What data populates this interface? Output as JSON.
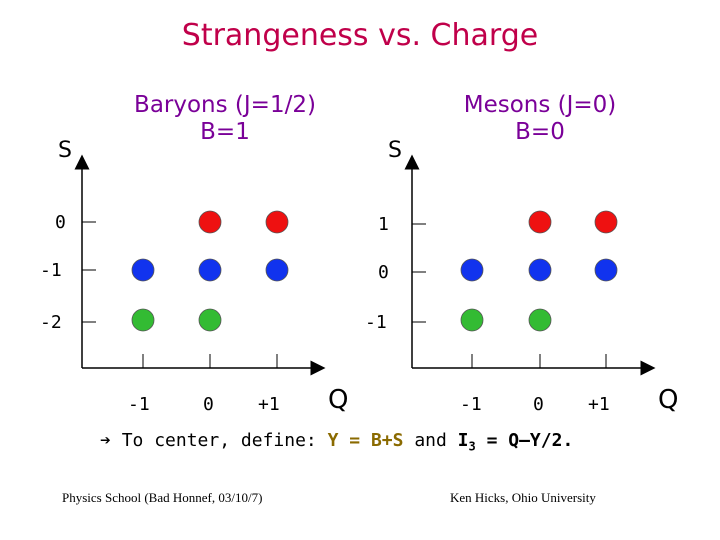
{
  "title": "Strangeness vs. Charge",
  "left_panel": {
    "title_line1": "Baryons (J=1/2)",
    "title_line2": "B=1",
    "y_axis_label": "S",
    "x_axis_label": "Q",
    "y_ticks": [
      "0",
      "-1",
      "-2"
    ],
    "x_ticks": [
      "-1",
      "0",
      "+1"
    ]
  },
  "right_panel": {
    "title_line1": "Mesons (J=0)",
    "title_line2": "B=0",
    "y_axis_label": "S",
    "x_axis_label": "Q",
    "y_ticks": [
      "1",
      "0",
      "-1"
    ],
    "x_ticks": [
      "-1",
      "0",
      "+1"
    ]
  },
  "note": {
    "arrow": "➔",
    "prefix": "To center, define:",
    "y_def": "Y = B+S",
    "and": "and",
    "i_prefix": "I",
    "i_sub": "3",
    "i_def": " = Q–Y/2."
  },
  "footer_left": "Physics School (Bad Honnef, 03/10/7)",
  "footer_right": "Ken Hicks, Ohio University",
  "colors": {
    "title": "#c0004a",
    "panel_title": "#7a0098",
    "red": "#ee1111",
    "blue": "#1133ee",
    "green": "#33bb33"
  },
  "chart_data": [
    {
      "type": "scatter",
      "title": "Baryons (J=1/2) B=1",
      "xlabel": "Q",
      "ylabel": "S",
      "points": [
        {
          "x": 0,
          "y": 0,
          "color": "red"
        },
        {
          "x": 1,
          "y": 0,
          "color": "red"
        },
        {
          "x": -1,
          "y": -1,
          "color": "blue"
        },
        {
          "x": 0,
          "y": -1,
          "color": "blue"
        },
        {
          "x": 1,
          "y": -1,
          "color": "blue"
        },
        {
          "x": -1,
          "y": -2,
          "color": "green"
        },
        {
          "x": 0,
          "y": -2,
          "color": "green"
        }
      ]
    },
    {
      "type": "scatter",
      "title": "Mesons (J=0) B=0",
      "xlabel": "Q",
      "ylabel": "S",
      "points": [
        {
          "x": 0,
          "y": 1,
          "color": "red"
        },
        {
          "x": 1,
          "y": 1,
          "color": "red"
        },
        {
          "x": -1,
          "y": 0,
          "color": "blue"
        },
        {
          "x": 0,
          "y": 0,
          "color": "blue"
        },
        {
          "x": 1,
          "y": 0,
          "color": "blue"
        },
        {
          "x": -1,
          "y": -1,
          "color": "green"
        },
        {
          "x": 0,
          "y": -1,
          "color": "green"
        }
      ]
    }
  ]
}
